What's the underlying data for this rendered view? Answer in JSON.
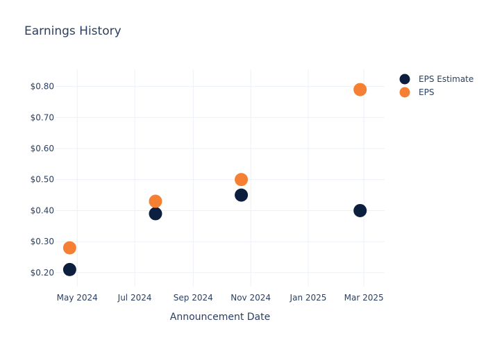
{
  "chart_data": {
    "type": "scatter",
    "title": "Earnings History",
    "xlabel": "Announcement Date",
    "ylabel": "",
    "x_ticks": [
      "2024-05-01",
      "2024-07-01",
      "2024-09-01",
      "2024-11-01",
      "2025-01-01",
      "2025-03-01"
    ],
    "x_tick_labels": [
      "May 2024",
      "Jul 2024",
      "Sep 2024",
      "Nov 2024",
      "Jan 2025",
      "Mar 2025"
    ],
    "xlim": [
      "2024-04-08",
      "2025-03-23"
    ],
    "y_ticks": [
      0.2,
      0.3,
      0.4,
      0.5,
      0.6,
      0.7,
      0.8
    ],
    "y_tick_labels": [
      "$0.20",
      "$0.30",
      "$0.40",
      "$0.50",
      "$0.60",
      "$0.70",
      "$0.80"
    ],
    "ylim": [
      0.155,
      0.855
    ],
    "grid": true,
    "legend_position": "top-right",
    "series": [
      {
        "name": "EPS Estimate",
        "color": "#0c1f3f",
        "points": [
          {
            "x": "2024-04-23",
            "y": 0.21
          },
          {
            "x": "2024-07-23",
            "y": 0.39
          },
          {
            "x": "2024-10-22",
            "y": 0.45
          },
          {
            "x": "2025-02-25",
            "y": 0.4
          }
        ]
      },
      {
        "name": "EPS",
        "color": "#f58033",
        "points": [
          {
            "x": "2024-04-23",
            "y": 0.28
          },
          {
            "x": "2024-07-23",
            "y": 0.43
          },
          {
            "x": "2024-10-22",
            "y": 0.5
          },
          {
            "x": "2025-02-25",
            "y": 0.79
          }
        ]
      }
    ]
  }
}
